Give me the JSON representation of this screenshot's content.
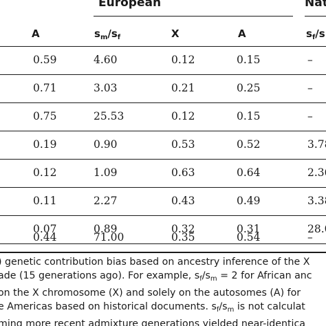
{
  "group_headers": {
    "european": "European",
    "native": "Nat"
  },
  "columns": {
    "a_left": "A",
    "ratio_main": "s",
    "ratio_sub_1": "m",
    "ratio_slash": "/s",
    "ratio_sub_2": "f",
    "x": "X",
    "a_right": "A",
    "native_main": "s",
    "native_sub_1": "f",
    "native_slash": "/s"
  },
  "rows": [
    {
      "a1": "0.59",
      "ratio": "4.60",
      "x": "0.12",
      "a2": "0.15",
      "nat": "–"
    },
    {
      "a1": "0.71",
      "ratio": "3.03",
      "x": "0.21",
      "a2": "0.25",
      "nat": "–"
    },
    {
      "a1": "0.75",
      "ratio": "25.53",
      "x": "0.12",
      "a2": "0.15",
      "nat": "–"
    },
    {
      "a1": "0.19",
      "ratio": "0.90",
      "x": "0.53",
      "a2": "0.52",
      "nat": "3.78"
    },
    {
      "a1": "0.12",
      "ratio": "1.09",
      "x": "0.63",
      "a2": "0.64",
      "nat": "2.36"
    },
    {
      "a1": "0.11",
      "ratio": "2.27",
      "x": "0.43",
      "a2": "0.49",
      "nat": "3.38"
    },
    {
      "a1": "0.07",
      "ratio": "0.89",
      "x": "0.32",
      "a2": "0.31",
      "nat": "28.0"
    },
    {
      "a1": "0.44",
      "ratio": "71.00",
      "x": "0.35",
      "a2": "0.54",
      "nat": "–"
    }
  ],
  "footnote": {
    "line1": ") genetic contribution bias based on ancestry inference of the X",
    "line2_a": "ade (15 generations ago). For example, s",
    "line2_sub1": "f",
    "line2_b": "/s",
    "line2_sub2": "m",
    "line2_c": " = 2 for African anc",
    "line3": "on the X chromosome (X) and solely on the autosomes (A) for",
    "line4_a": "e Americas based on historical documents. s",
    "line4_sub1": "f",
    "line4_b": "/s",
    "line4_sub2": "m",
    "line4_c": " is not calculat",
    "line5": "ming more recent admixture generations yielded near-identica"
  }
}
